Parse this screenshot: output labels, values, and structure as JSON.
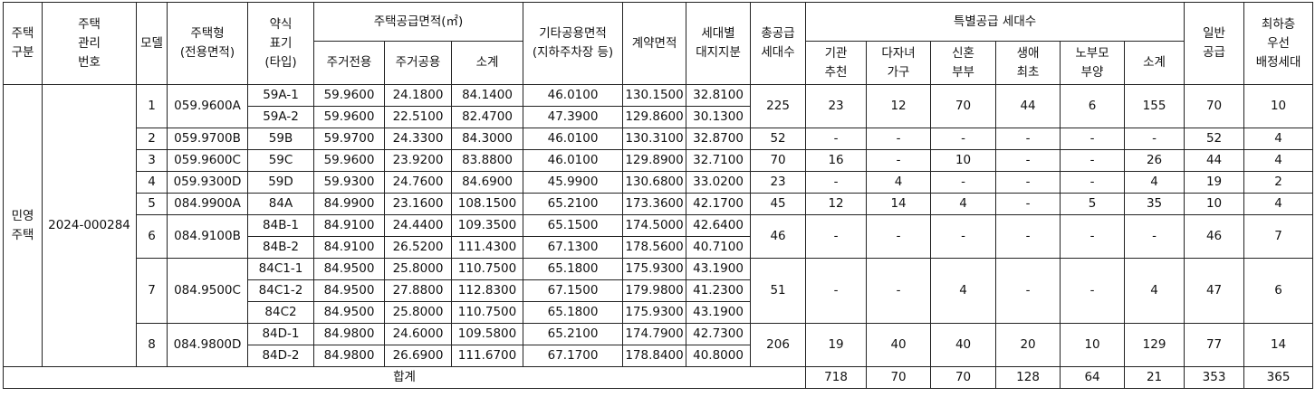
{
  "headers": {
    "house_type_group": [
      "주택",
      "구분"
    ],
    "mgmt_no": [
      "주택",
      "관리",
      "번호"
    ],
    "model": "모델",
    "house_type": [
      "주택형",
      "(전용면적)"
    ],
    "abbr": [
      "약식",
      "표기",
      "(타입)"
    ],
    "supply_area": "주택공급면적(㎡)",
    "exclusive": "주거전용",
    "common": "주거공용",
    "subtotal": "소계",
    "other_common": [
      "기타공용면적",
      "(지하주차장 등)"
    ],
    "contract_area": "계약면적",
    "land_share": [
      "세대별",
      "대지지분"
    ],
    "total_units": [
      "총공급",
      "세대수"
    ],
    "special": "특별공급 세대수",
    "institution": [
      "기관",
      "추천"
    ],
    "multichild": [
      "다자녀",
      "가구"
    ],
    "newlywed": [
      "신혼",
      "부부"
    ],
    "first_time": [
      "생애",
      "최초"
    ],
    "elderly": [
      "노부모",
      "부양"
    ],
    "special_subtotal": "소계",
    "general": [
      "일반",
      "공급"
    ],
    "lowest_floor": [
      "최하층",
      "우선",
      "배정세대"
    ]
  },
  "group": {
    "house_type": [
      "민영",
      "주택"
    ],
    "mgmt_no": "2024-000284"
  },
  "models": [
    {
      "model": "1",
      "house_type": "059.9600A",
      "types": [
        {
          "abbr": "59A-1",
          "exclusive": "59.9600",
          "common": "24.1800",
          "subtotal": "84.1400",
          "other": "46.0100",
          "contract": "130.1500",
          "land": "32.8100"
        },
        {
          "abbr": "59A-2",
          "exclusive": "59.9600",
          "common": "22.5100",
          "subtotal": "82.4700",
          "other": "47.3900",
          "contract": "129.8600",
          "land": "30.1300"
        }
      ],
      "total": "225",
      "inst": "23",
      "multi": "12",
      "newly": "70",
      "first": "44",
      "elder": "6",
      "sp_sub": "155",
      "general": "70",
      "lowest": "10"
    },
    {
      "model": "2",
      "house_type": "059.9700B",
      "types": [
        {
          "abbr": "59B",
          "exclusive": "59.9700",
          "common": "24.3300",
          "subtotal": "84.3000",
          "other": "46.0100",
          "contract": "130.3100",
          "land": "32.8700"
        }
      ],
      "total": "52",
      "inst": "-",
      "multi": "-",
      "newly": "-",
      "first": "-",
      "elder": "-",
      "sp_sub": "-",
      "general": "52",
      "lowest": "4"
    },
    {
      "model": "3",
      "house_type": "059.9600C",
      "types": [
        {
          "abbr": "59C",
          "exclusive": "59.9600",
          "common": "23.9200",
          "subtotal": "83.8800",
          "other": "46.0100",
          "contract": "129.8900",
          "land": "32.7100"
        }
      ],
      "total": "70",
      "inst": "16",
      "multi": "-",
      "newly": "10",
      "first": "-",
      "elder": "-",
      "sp_sub": "26",
      "general": "44",
      "lowest": "4"
    },
    {
      "model": "4",
      "house_type": "059.9300D",
      "types": [
        {
          "abbr": "59D",
          "exclusive": "59.9300",
          "common": "24.7600",
          "subtotal": "84.6900",
          "other": "45.9900",
          "contract": "130.6800",
          "land": "33.0200"
        }
      ],
      "total": "23",
      "inst": "-",
      "multi": "4",
      "newly": "-",
      "first": "-",
      "elder": "-",
      "sp_sub": "4",
      "general": "19",
      "lowest": "2"
    },
    {
      "model": "5",
      "house_type": "084.9900A",
      "types": [
        {
          "abbr": "84A",
          "exclusive": "84.9900",
          "common": "23.1600",
          "subtotal": "108.1500",
          "other": "65.2100",
          "contract": "173.3600",
          "land": "42.1700"
        }
      ],
      "total": "45",
      "inst": "12",
      "multi": "14",
      "newly": "4",
      "first": "-",
      "elder": "5",
      "sp_sub": "35",
      "general": "10",
      "lowest": "4"
    },
    {
      "model": "6",
      "house_type": "084.9100B",
      "types": [
        {
          "abbr": "84B-1",
          "exclusive": "84.9100",
          "common": "24.4400",
          "subtotal": "109.3500",
          "other": "65.1500",
          "contract": "174.5000",
          "land": "42.6400"
        },
        {
          "abbr": "84B-2",
          "exclusive": "84.9100",
          "common": "26.5200",
          "subtotal": "111.4300",
          "other": "67.1300",
          "contract": "178.5600",
          "land": "40.7100"
        }
      ],
      "total": "46",
      "inst": "-",
      "multi": "-",
      "newly": "-",
      "first": "-",
      "elder": "-",
      "sp_sub": "-",
      "general": "46",
      "lowest": "7"
    },
    {
      "model": "7",
      "house_type": "084.9500C",
      "types": [
        {
          "abbr": "84C1-1",
          "exclusive": "84.9500",
          "common": "25.8000",
          "subtotal": "110.7500",
          "other": "65.1800",
          "contract": "175.9300",
          "land": "43.1900"
        },
        {
          "abbr": "84C1-2",
          "exclusive": "84.9500",
          "common": "27.8800",
          "subtotal": "112.8300",
          "other": "67.1500",
          "contract": "179.9800",
          "land": "41.2300"
        },
        {
          "abbr": "84C2",
          "exclusive": "84.9500",
          "common": "25.8000",
          "subtotal": "110.7500",
          "other": "65.1800",
          "contract": "175.9300",
          "land": "43.1900"
        }
      ],
      "total": "51",
      "inst": "-",
      "multi": "-",
      "newly": "4",
      "first": "-",
      "elder": "-",
      "sp_sub": "4",
      "general": "47",
      "lowest": "6"
    },
    {
      "model": "8",
      "house_type": "084.9800D",
      "types": [
        {
          "abbr": "84D-1",
          "exclusive": "84.9800",
          "common": "24.6000",
          "subtotal": "109.5800",
          "other": "65.2100",
          "contract": "174.7900",
          "land": "42.7300"
        },
        {
          "abbr": "84D-2",
          "exclusive": "84.9800",
          "common": "26.6900",
          "subtotal": "111.6700",
          "other": "67.1700",
          "contract": "178.8400",
          "land": "40.8000"
        }
      ],
      "total": "206",
      "inst": "19",
      "multi": "40",
      "newly": "40",
      "first": "20",
      "elder": "10",
      "sp_sub": "129",
      "general": "77",
      "lowest": "14"
    }
  ],
  "totals": {
    "label": "합계",
    "total": "718",
    "inst": "70",
    "multi": "70",
    "newly": "128",
    "first": "64",
    "elder": "21",
    "sp_sub": "353",
    "general": "365",
    "lowest": "51"
  }
}
